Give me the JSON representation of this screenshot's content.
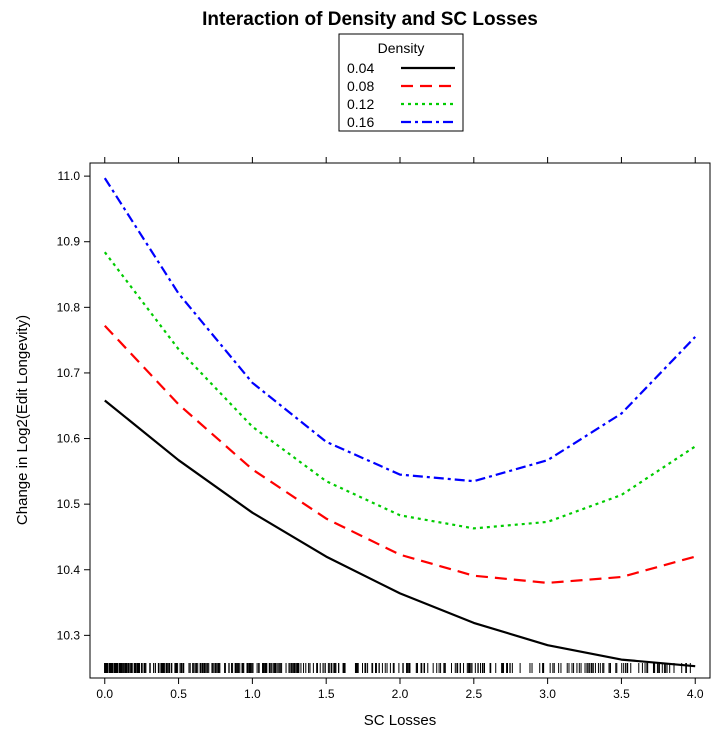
{
  "chart_data": {
    "type": "line",
    "title": "Interaction of Density and SC Losses",
    "xlabel": "SC Losses",
    "ylabel": "Change in Log2(Edit Longevity)",
    "xlim": [
      -0.1,
      4.1
    ],
    "ylim": [
      10.235,
      11.02
    ],
    "x_ticks": [
      "0.0",
      "0.5",
      "1.0",
      "1.5",
      "2.0",
      "2.5",
      "3.0",
      "3.5",
      "4.0"
    ],
    "y_ticks": [
      "10.3",
      "10.4",
      "10.5",
      "10.6",
      "10.7",
      "10.8",
      "10.9",
      "11.0"
    ],
    "grid": false,
    "legend": {
      "title": "Density",
      "position": "top-center"
    },
    "x": [
      0.0,
      0.5,
      1.0,
      1.5,
      2.0,
      2.5,
      3.0,
      3.5,
      4.0
    ],
    "series": [
      {
        "name": "0.04",
        "color": "#000000",
        "dash": "solid",
        "values": [
          10.658,
          10.567,
          10.487,
          10.42,
          10.364,
          10.319,
          10.285,
          10.263,
          10.253
        ]
      },
      {
        "name": "0.08",
        "color": "#ff0000",
        "dash": "dashed",
        "values": [
          10.772,
          10.652,
          10.553,
          10.478,
          10.423,
          10.391,
          10.38,
          10.389,
          10.42
        ]
      },
      {
        "name": "0.12",
        "color": "#00cc00",
        "dash": "dotted",
        "values": [
          10.884,
          10.736,
          10.618,
          10.535,
          10.483,
          10.463,
          10.473,
          10.514,
          10.588
        ]
      },
      {
        "name": "0.16",
        "color": "#0000ff",
        "dash": "dotdash",
        "values": [
          10.997,
          10.821,
          10.685,
          10.595,
          10.545,
          10.535,
          10.567,
          10.638,
          10.755
        ]
      }
    ]
  }
}
